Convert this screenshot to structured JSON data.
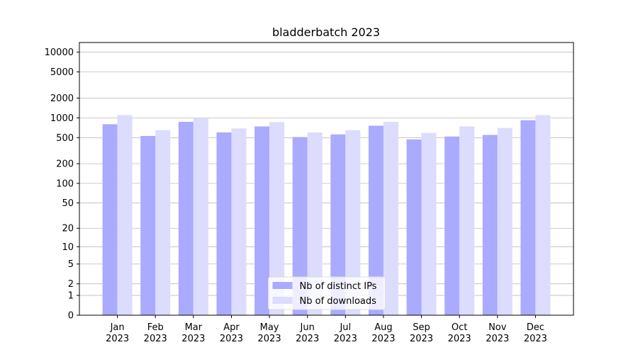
{
  "chart_data": {
    "type": "bar",
    "title": "bladderbatch 2023",
    "categories": [
      "Jan\n2023",
      "Feb\n2023",
      "Mar\n2023",
      "Apr\n2023",
      "May\n2023",
      "Jun\n2023",
      "Jul\n2023",
      "Aug\n2023",
      "Sep\n2023",
      "Oct\n2023",
      "Nov\n2023",
      "Dec\n2023"
    ],
    "series": [
      {
        "name": "Nb of distinct IPs",
        "color": "#aaaaff",
        "values": [
          800,
          530,
          870,
          600,
          740,
          510,
          560,
          760,
          470,
          520,
          550,
          920
        ]
      },
      {
        "name": "Nb of downloads",
        "color": "#dcdcff",
        "values": [
          1100,
          650,
          1000,
          690,
          860,
          600,
          650,
          870,
          590,
          740,
          700,
          1100
        ]
      }
    ],
    "y_scale": "log1p",
    "ylim": [
      0,
      14000
    ],
    "yticks": [
      0,
      1,
      2,
      5,
      10,
      20,
      50,
      100,
      200,
      500,
      1000,
      2000,
      5000,
      10000
    ],
    "grid": true,
    "legend": "lower center"
  }
}
